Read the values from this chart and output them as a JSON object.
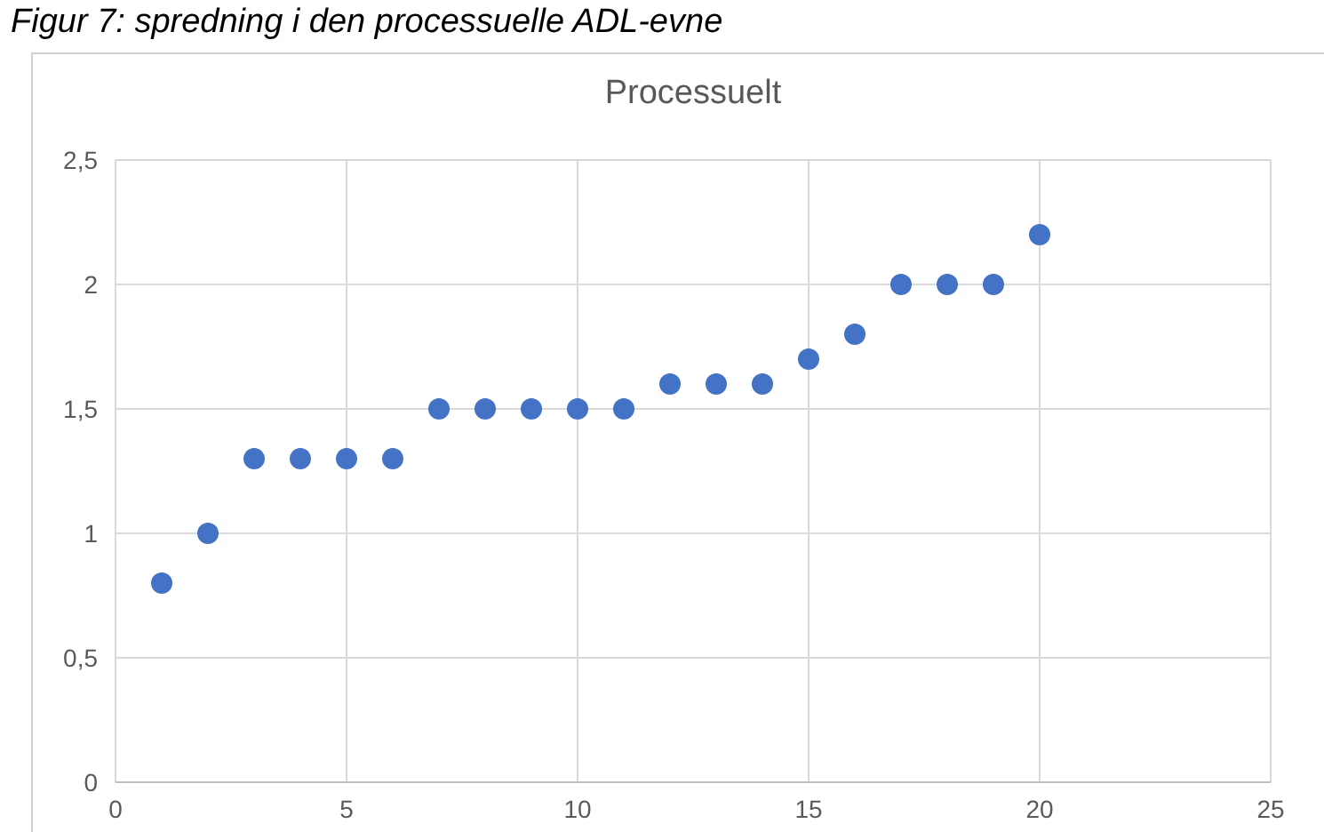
{
  "chart_data": {
    "type": "scatter",
    "title": "Processuelt",
    "annotations": [
      "Figur 7: spredning i den processuelle ADL-evne"
    ],
    "x": [
      1,
      2,
      3,
      4,
      5,
      6,
      7,
      8,
      9,
      10,
      11,
      12,
      13,
      14,
      15,
      16,
      17,
      18,
      19,
      20
    ],
    "series": [
      {
        "color": "#4472c4",
        "values": [
          0.8,
          1.0,
          1.3,
          1.3,
          1.3,
          1.3,
          1.5,
          1.5,
          1.5,
          1.5,
          1.5,
          1.6,
          1.6,
          1.6,
          1.7,
          1.8,
          2.0,
          2.0,
          2.0,
          2.2
        ]
      }
    ],
    "xlim": [
      0,
      25
    ],
    "xticks": [
      0,
      5,
      10,
      15,
      20,
      25
    ],
    "ylim": [
      0,
      2.5
    ],
    "yticks": [
      0,
      {
        "value": 0.5,
        "label": "0,5"
      },
      1,
      {
        "value": 1.5,
        "label": "1,5"
      },
      2,
      {
        "value": 2.5,
        "label": "2,5"
      }
    ],
    "grid": true,
    "marker": "circle"
  }
}
